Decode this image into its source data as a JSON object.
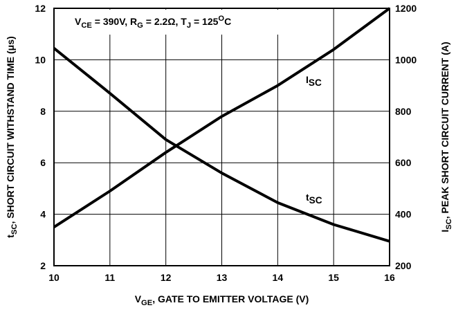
{
  "chart_data": {
    "type": "line",
    "annotation": [
      {
        "text": "V"
      },
      {
        "text": "CE",
        "sub": true
      },
      {
        "text": " = 390V, R"
      },
      {
        "text": "G",
        "sub": true
      },
      {
        "text": " = 2.2Ω, T"
      },
      {
        "text": "J",
        "sub": true
      },
      {
        "text": " = 125"
      },
      {
        "text": "O",
        "sup": true
      },
      {
        "text": "C"
      }
    ],
    "xlabel": [
      {
        "text": "V"
      },
      {
        "text": "GE",
        "sub": true
      },
      {
        "text": ", GATE TO EMITTER VOLTAGE (V)"
      }
    ],
    "ylabel": [
      {
        "text": "t"
      },
      {
        "text": "SC",
        "sub": true
      },
      {
        "text": ", SHORT CIRCUIT WITHSTAND TIME (μs)"
      }
    ],
    "y2label": [
      {
        "text": "I"
      },
      {
        "text": "SC",
        "sub": true
      },
      {
        "text": ", PEAK SHORT CIRCUIT CURRENT (A)"
      }
    ],
    "x": [
      10,
      11,
      12,
      13,
      14,
      15,
      16
    ],
    "series": [
      {
        "label": [
          {
            "text": "t"
          },
          {
            "text": "SC",
            "sub": true
          }
        ],
        "color": "#000000",
        "values": [
          10.45,
          8.7,
          6.9,
          5.6,
          4.45,
          3.6,
          2.95
        ]
      },
      {
        "label": [
          {
            "text": "I"
          },
          {
            "text": "SC",
            "sub": true
          }
        ],
        "color": "#000000",
        "axis": "y2",
        "values": [
          350,
          490,
          640,
          780,
          900,
          1040,
          1200
        ]
      }
    ],
    "xlim": [
      10,
      16
    ],
    "xticks": [
      10,
      11,
      12,
      13,
      14,
      15,
      16
    ],
    "ylim": [
      2,
      12
    ],
    "yticks": [
      2,
      4,
      6,
      8,
      10,
      12
    ],
    "y2lim": [
      200,
      1200
    ],
    "y2ticks": [
      200,
      400,
      600,
      800,
      1000,
      1200
    ],
    "grid": true
  }
}
